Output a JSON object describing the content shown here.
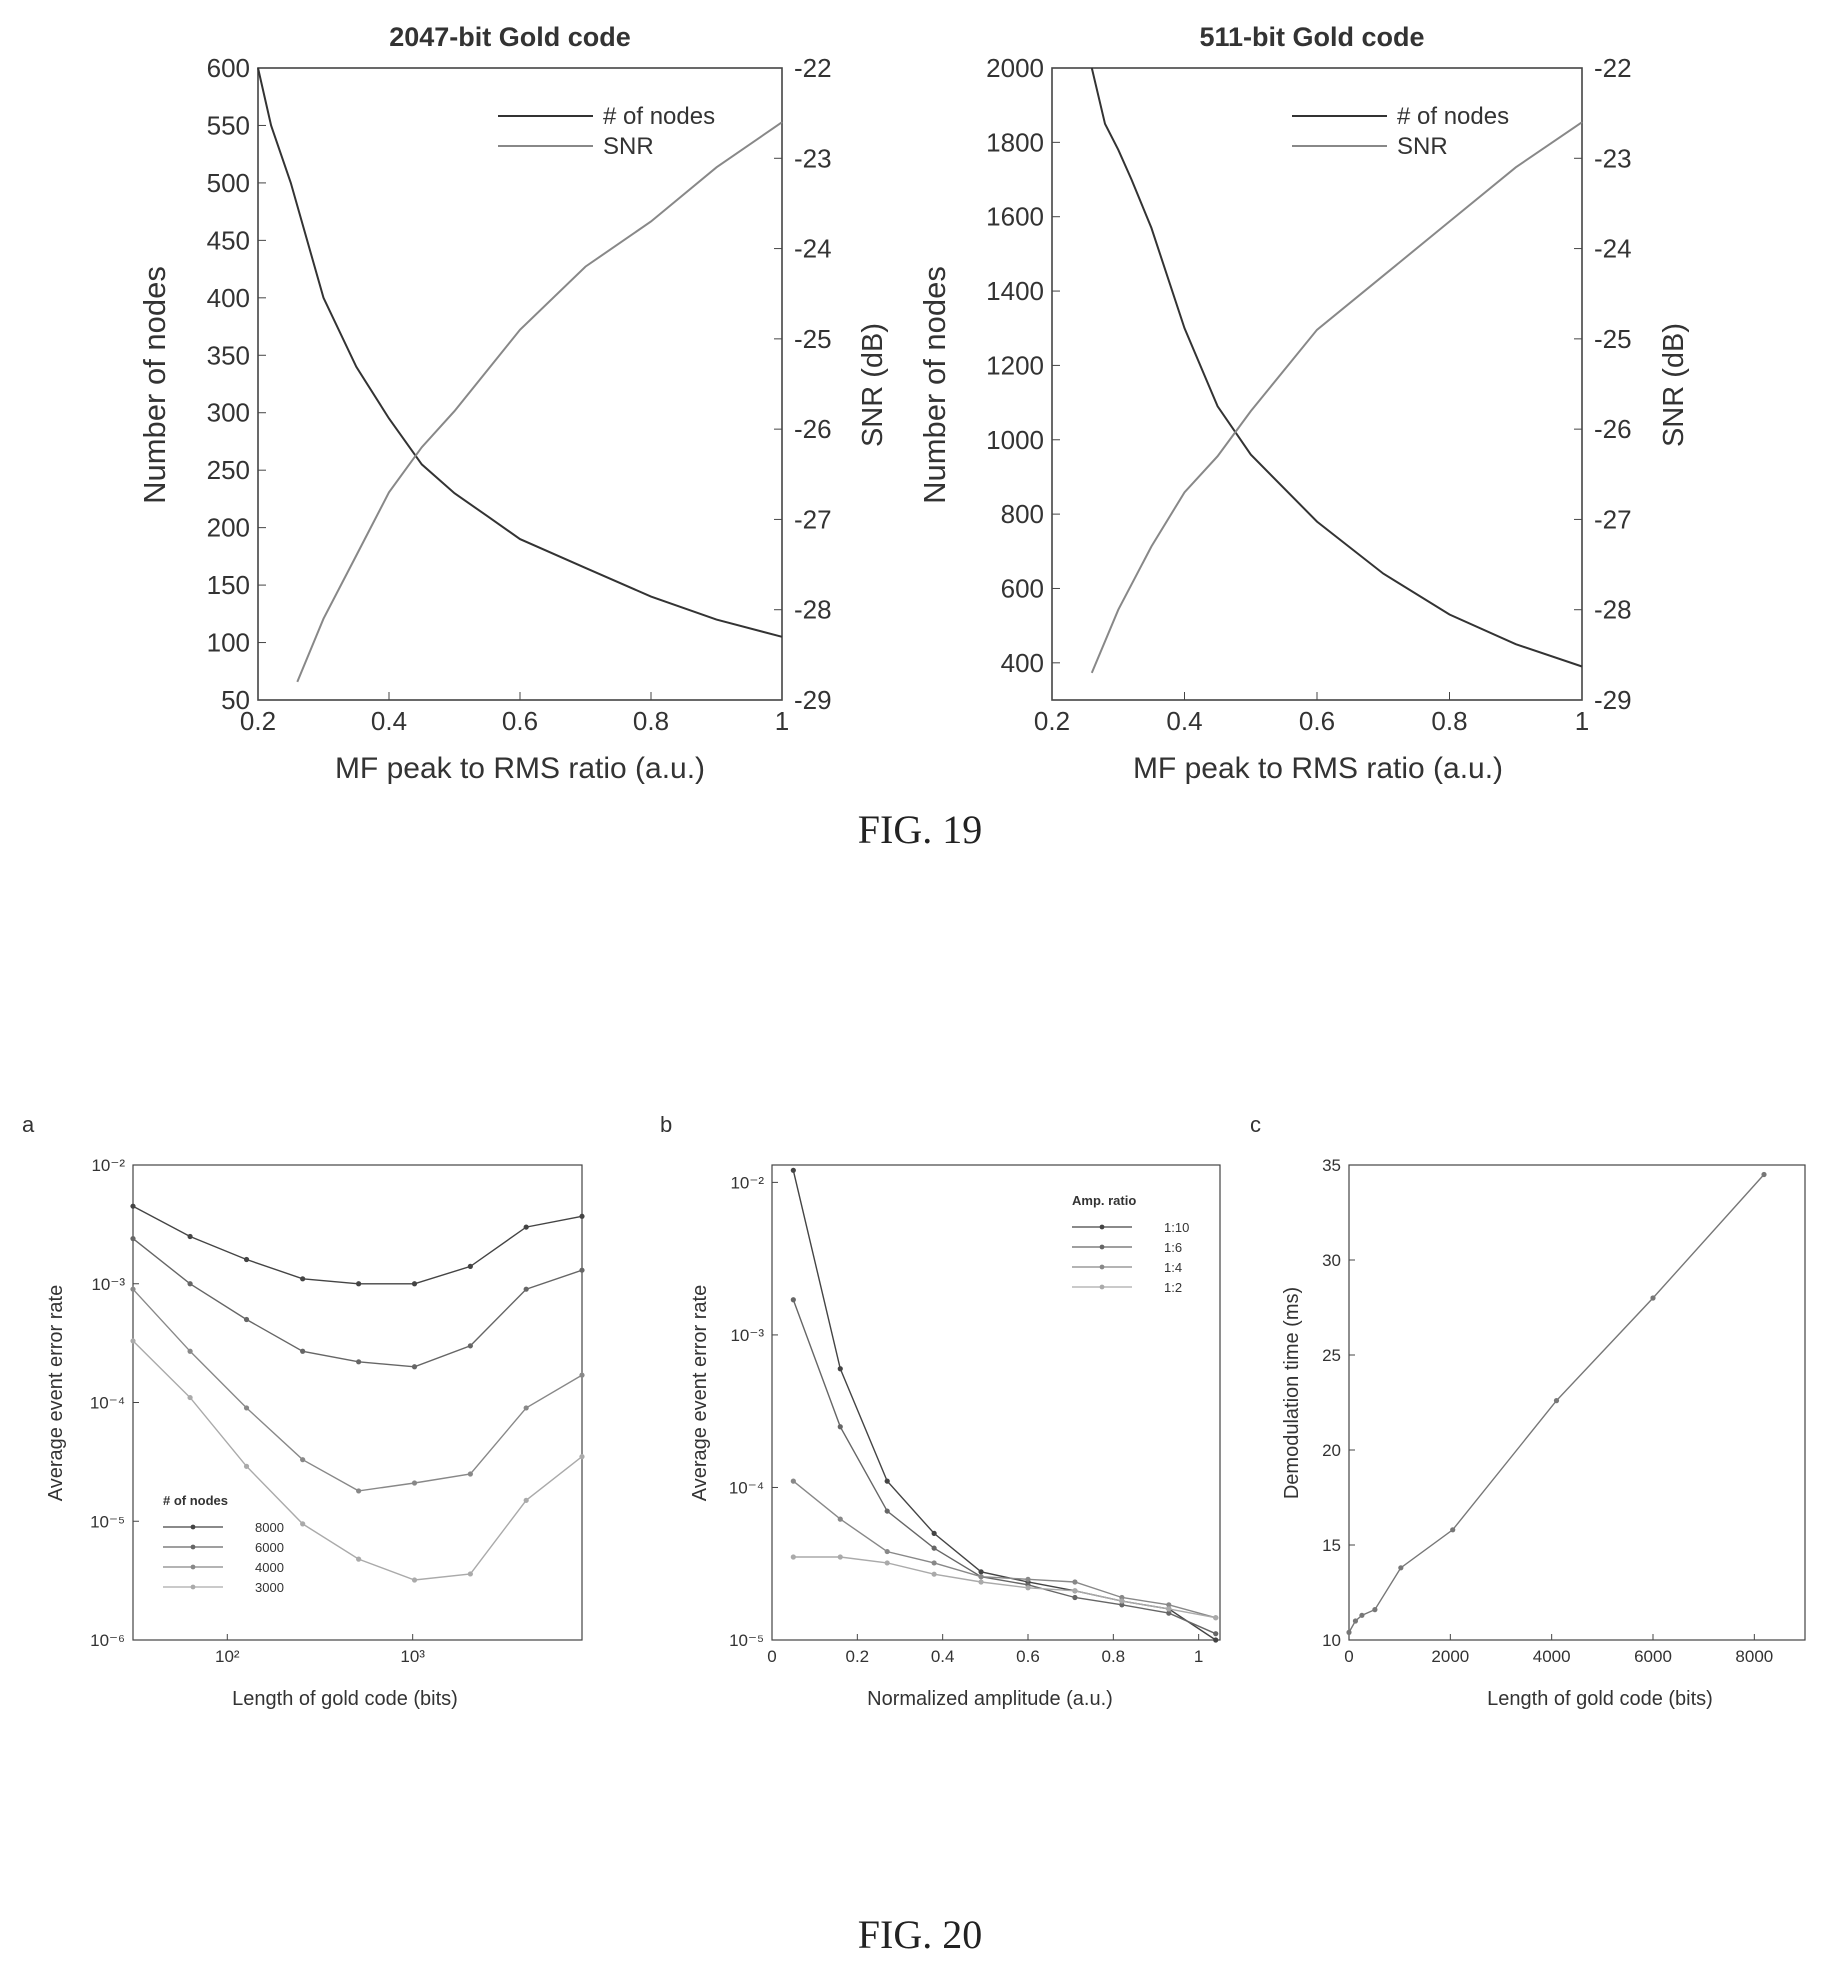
{
  "figures": [
    {
      "caption": "FIG. 19"
    },
    {
      "caption": "FIG. 20"
    }
  ],
  "chart_data": [
    {
      "type": "line",
      "title": "2047-bit Gold code",
      "xlabel": "MF peak to RMS ratio (a.u.)",
      "ylabel": "Number of nodes",
      "y2label": "SNR (dB)",
      "xlim": [
        0.2,
        1
      ],
      "ylim": [
        50,
        600
      ],
      "y2lim": [
        -29,
        -22
      ],
      "xticks": [
        "0.2",
        "0.4",
        "0.6",
        "0.8",
        "1"
      ],
      "yticks": [
        "50",
        "100",
        "150",
        "200",
        "250",
        "300",
        "350",
        "400",
        "450",
        "500",
        "550",
        "600"
      ],
      "y2ticks": [
        "-22",
        "-23",
        "-24",
        "-25",
        "-26",
        "-27",
        "-28",
        "-29"
      ],
      "legend": "top-right",
      "series": [
        {
          "name": "# of nodes",
          "axis": "left",
          "color": "#333333",
          "x": [
            0.2,
            0.22,
            0.25,
            0.3,
            0.35,
            0.4,
            0.45,
            0.5,
            0.55,
            0.6,
            0.7,
            0.8,
            0.9,
            1.0
          ],
          "y": [
            600,
            550,
            500,
            400,
            340,
            295,
            255,
            230,
            210,
            190,
            165,
            140,
            120,
            105
          ]
        },
        {
          "name": "SNR",
          "axis": "right",
          "color": "#888888",
          "x": [
            0.26,
            0.3,
            0.35,
            0.4,
            0.45,
            0.5,
            0.6,
            0.7,
            0.8,
            0.9,
            1.0
          ],
          "y": [
            -28.8,
            -28.1,
            -27.4,
            -26.7,
            -26.2,
            -25.8,
            -24.9,
            -24.2,
            -23.7,
            -23.1,
            -22.6
          ]
        }
      ]
    },
    {
      "type": "line",
      "title": "511-bit Gold code",
      "xlabel": "MF peak to RMS ratio (a.u.)",
      "ylabel": "Number of nodes",
      "y2label": "SNR (dB)",
      "xlim": [
        0.2,
        1
      ],
      "ylim": [
        300,
        2000
      ],
      "y2lim": [
        -29,
        -22
      ],
      "xticks": [
        "0.2",
        "0.4",
        "0.6",
        "0.8",
        "1"
      ],
      "yticks": [
        "400",
        "600",
        "800",
        "1000",
        "1200",
        "1400",
        "1600",
        "1800",
        "2000"
      ],
      "y2ticks": [
        "-22",
        "-23",
        "-24",
        "-25",
        "-26",
        "-27",
        "-28",
        "-29"
      ],
      "legend": "top-right",
      "series": [
        {
          "name": "# of nodes",
          "axis": "left",
          "color": "#333333",
          "x": [
            0.26,
            0.28,
            0.3,
            0.32,
            0.35,
            0.4,
            0.45,
            0.5,
            0.6,
            0.7,
            0.8,
            0.9,
            1.0
          ],
          "y": [
            2000,
            1850,
            1780,
            1700,
            1570,
            1300,
            1090,
            960,
            780,
            640,
            530,
            450,
            390
          ]
        },
        {
          "name": "SNR",
          "axis": "right",
          "color": "#888888",
          "x": [
            0.26,
            0.3,
            0.35,
            0.4,
            0.45,
            0.5,
            0.6,
            0.7,
            0.8,
            0.9,
            1.0
          ],
          "y": [
            -28.7,
            -28.0,
            -27.3,
            -26.7,
            -26.3,
            -25.8,
            -24.9,
            -24.3,
            -23.7,
            -23.1,
            -22.6
          ]
        }
      ]
    },
    {
      "type": "line",
      "panel_label": "a",
      "xlabel": "Length of gold code (bits)",
      "ylabel": "Average event error rate",
      "xscale": "log",
      "yscale": "log",
      "xlim": [
        31,
        8191
      ],
      "ylim": [
        1e-06,
        0.01
      ],
      "xticks": [
        "10²",
        "10³"
      ],
      "yticks": [
        "10⁻⁶",
        "10⁻⁵",
        "10⁻⁴",
        "10⁻³",
        "10⁻²"
      ],
      "legend_title": "# of nodes",
      "legend": "bottom-left",
      "x": [
        31,
        63,
        127,
        255,
        511,
        1023,
        2047,
        4095,
        8191
      ],
      "series": [
        {
          "name": "8000",
          "color": "#444444",
          "y": [
            0.0045,
            0.0025,
            0.0016,
            0.0011,
            0.001,
            0.001,
            0.0014,
            0.003,
            0.0037
          ]
        },
        {
          "name": "6000",
          "color": "#666666",
          "y": [
            0.0024,
            0.001,
            0.0005,
            0.00027,
            0.00022,
            0.0002,
            0.0003,
            0.0009,
            0.0013
          ]
        },
        {
          "name": "4000",
          "color": "#888888",
          "y": [
            0.0009,
            0.00027,
            9e-05,
            3.3e-05,
            1.8e-05,
            2.1e-05,
            2.5e-05,
            9e-05,
            0.00017
          ]
        },
        {
          "name": "3000",
          "color": "#aaaaaa",
          "y": [
            0.00033,
            0.00011,
            2.9e-05,
            9.5e-06,
            4.8e-06,
            3.2e-06,
            3.6e-06,
            1.5e-05,
            3.5e-05
          ]
        }
      ]
    },
    {
      "type": "line",
      "panel_label": "b",
      "xlabel": "Normalized amplitude (a.u.)",
      "ylabel": "Average event error rate",
      "yscale": "log",
      "xlim": [
        0,
        1.05
      ],
      "ylim": [
        1e-05,
        0.013
      ],
      "xticks": [
        "0",
        "0.2",
        "0.4",
        "0.6",
        "0.8",
        "1"
      ],
      "yticks": [
        "10⁻⁵",
        "10⁻⁴",
        "10⁻³",
        "10⁻²"
      ],
      "legend_title": "Amp. ratio",
      "legend": "top-right",
      "x": [
        0.05,
        0.16,
        0.27,
        0.38,
        0.49,
        0.6,
        0.71,
        0.82,
        0.93,
        1.04
      ],
      "series": [
        {
          "name": "1:10",
          "color": "#444444",
          "y": [
            0.012,
            0.0006,
            0.00011,
            5e-05,
            2.8e-05,
            2.4e-05,
            2.1e-05,
            1.8e-05,
            1.6e-05,
            1e-05
          ]
        },
        {
          "name": "1:6",
          "color": "#666666",
          "y": [
            0.0017,
            0.00025,
            7e-05,
            4e-05,
            2.6e-05,
            2.3e-05,
            1.9e-05,
            1.7e-05,
            1.5e-05,
            1.1e-05
          ]
        },
        {
          "name": "1:4",
          "color": "#888888",
          "y": [
            0.00011,
            6.2e-05,
            3.8e-05,
            3.2e-05,
            2.6e-05,
            2.5e-05,
            2.4e-05,
            1.9e-05,
            1.7e-05,
            1.4e-05
          ]
        },
        {
          "name": "1:2",
          "color": "#aaaaaa",
          "y": [
            3.5e-05,
            3.5e-05,
            3.2e-05,
            2.7e-05,
            2.4e-05,
            2.2e-05,
            2.1e-05,
            1.8e-05,
            1.6e-05,
            1.4e-05
          ]
        }
      ]
    },
    {
      "type": "line",
      "panel_label": "c",
      "xlabel": "Length of gold code (bits)",
      "ylabel": "Demodulation time (ms)",
      "xlim": [
        0,
        9000
      ],
      "ylim": [
        10,
        35
      ],
      "xticks": [
        "0",
        "2000",
        "4000",
        "6000",
        "8000"
      ],
      "yticks": [
        "10",
        "15",
        "20",
        "25",
        "30",
        "35"
      ],
      "series": [
        {
          "name": "",
          "color": "#777777",
          "x": [
            0,
            127,
            255,
            511,
            1023,
            2047,
            4095,
            6000,
            8191
          ],
          "y": [
            10.4,
            11.0,
            11.3,
            11.6,
            13.8,
            15.8,
            22.6,
            28.0,
            34.5
          ]
        }
      ]
    }
  ]
}
